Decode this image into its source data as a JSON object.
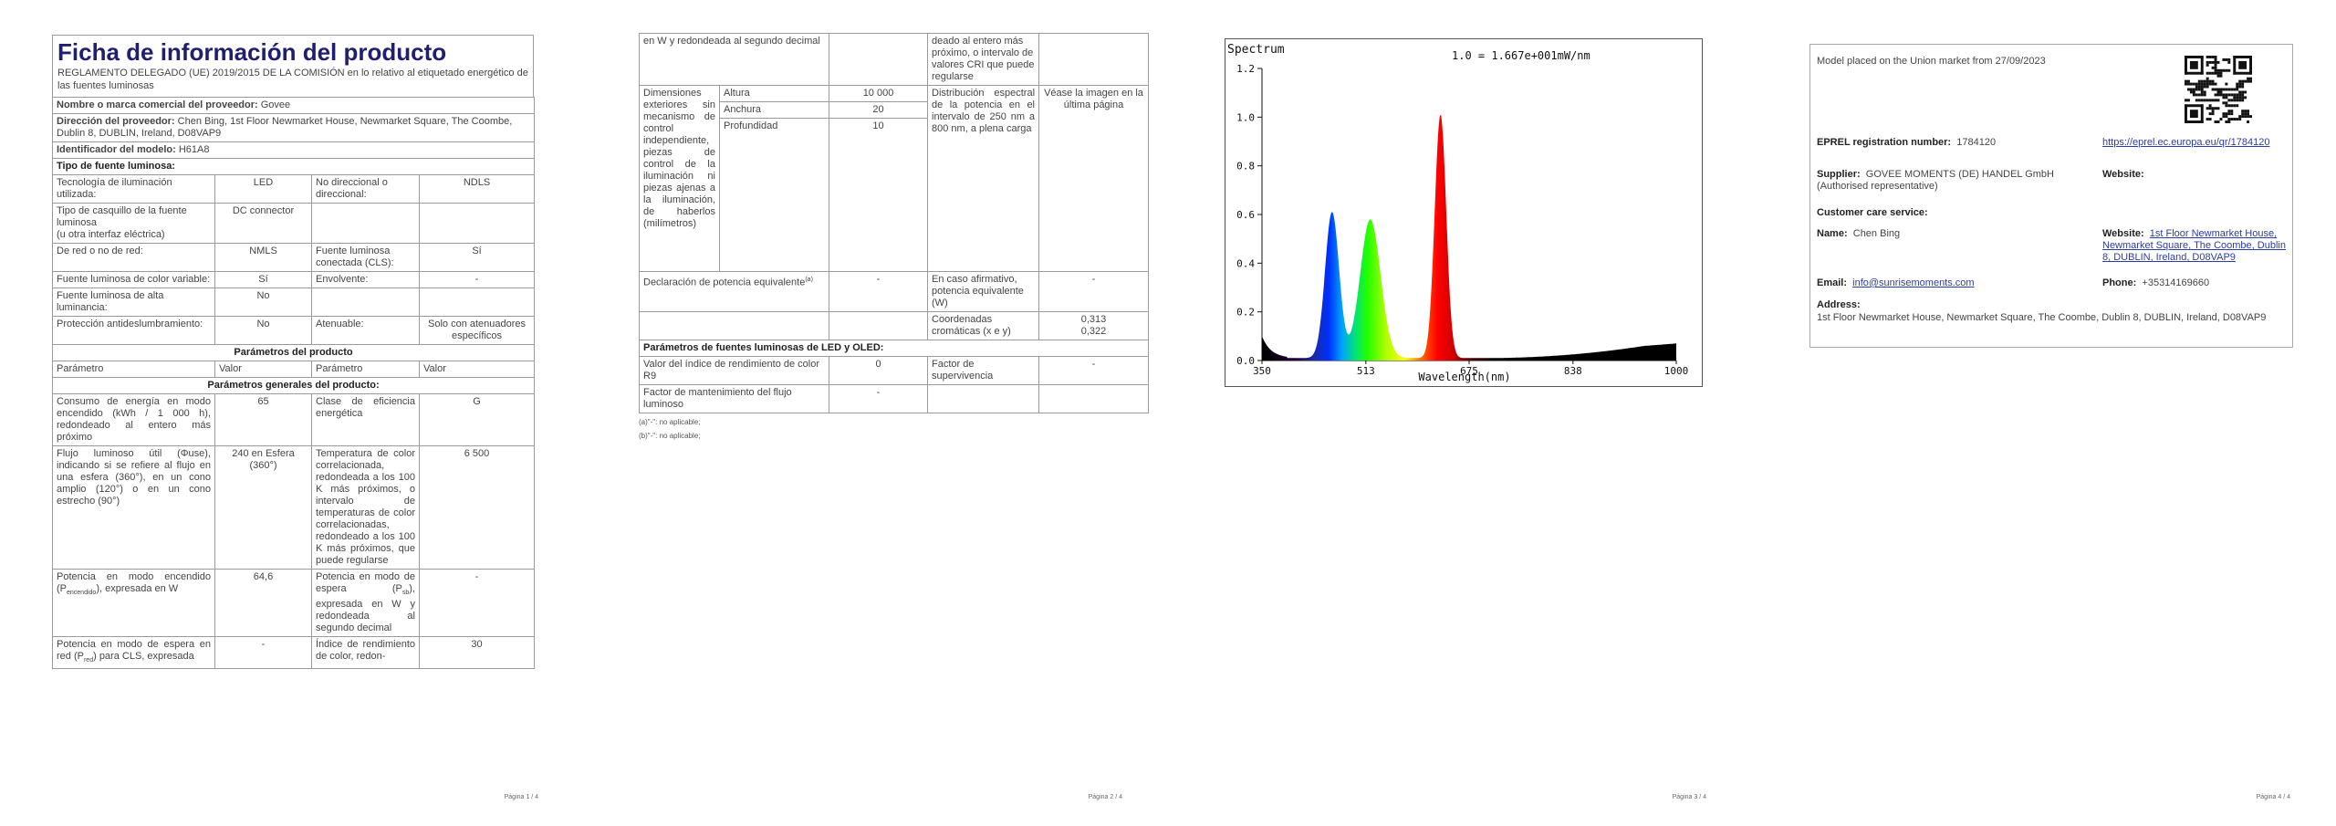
{
  "page1": {
    "title": "Ficha de información del producto",
    "subtitle": "REGLAMENTO DELEGADO (UE) 2019/2015 DE LA COMISIÓN en lo relativo al etiquetado energético de las fuentes luminosas",
    "supplier_name_label": "Nombre o marca comercial del proveedor:",
    "supplier_name": "Govee",
    "supplier_addr_label": "Dirección del proveedor:",
    "supplier_addr": "Chen Bing, 1st Floor Newmarket House, Newmarket Square, The Coombe, Dublin 8, DUBLIN, Ireland, D08VAP9",
    "model_label": "Identificador del modelo:",
    "model": "H61A8",
    "source_type": "Tipo de fuente luminosa:",
    "rows": [
      {
        "a": "Tecnología de iluminación utilizada:",
        "b": "LED",
        "c": "No direccional o direccional:",
        "d": "NDLS"
      },
      {
        "a": "Tipo de casquillo de la fuente luminosa",
        "a2": "(u otra interfaz eléctrica)",
        "b": "DC connector",
        "c": "",
        "d": ""
      },
      {
        "a": "De red o no de red:",
        "b": "NMLS",
        "c": "Fuente luminosa conectada (CLS):",
        "d": "Sí"
      },
      {
        "a": "Fuente luminosa de color variable:",
        "b": "Sí",
        "c": "Envolvente:",
        "d": "-"
      },
      {
        "a": "Fuente luminosa de alta luminancia:",
        "b": "No",
        "c": "",
        "d": ""
      },
      {
        "a": "Protección antideslumbramiento:",
        "b": "No",
        "c": "Atenuable:",
        "d": "Solo con atenuadores específicos"
      }
    ],
    "params_title": "Parámetros del producto",
    "col_param": "Parámetro",
    "col_value": "Valor",
    "general_title": "Parámetros generales del producto:",
    "params": [
      {
        "a": "Consumo de energía en modo encendido (kWh / 1 000 h), redondeado al entero más próximo",
        "b": "65",
        "c": "Clase de eficiencia energética",
        "d": "G"
      },
      {
        "a": "Flujo luminoso útil (Φuse), indicando si se refiere al flujo en una esfera (360°), en un cono amplio (120°) o en un cono estrecho (90°)",
        "b": "240 en Esfera (360°)",
        "c": "Temperatura de color correlacionada, redondeada a los 100 K más próximos, o intervalo de temperaturas de color correlacionadas, redondeado a los 100 K más próximos, que puede regularse",
        "d": "6 500"
      },
      {
        "a": "Potencia en modo encendido (P",
        "a_sub": "encendido",
        "a_end": "), expresada en W",
        "b": "64,6",
        "c": "Potencia en modo de espera (P",
        "c_sub": "sb",
        "c_end": "), expresada en W y redondeada al segundo decimal",
        "d": "-"
      },
      {
        "a": "Potencia en modo de espera en red (P",
        "a_sub": "red",
        "a_end": ") para CLS, expresada",
        "b": "-",
        "c": "Índice de rendimiento de color, redon-",
        "d": "30"
      }
    ],
    "page_num": "Página 1 / 4"
  },
  "page2": {
    "cont_a": "en W y redondeada al segundo decimal",
    "cont_c": "deado al entero más próximo, o intervalo de valores CRI que puede regularse",
    "dims_label": "Dimensiones exteriores sin mecanismo de control independiente, piezas de control de la iluminación ni piezas ajenas a la iluminación, de haberlos (milímetros)",
    "dims": [
      {
        "name": "Altura",
        "value": "10 000"
      },
      {
        "name": "Anchura",
        "value": "20"
      },
      {
        "name": "Profundidad",
        "value": "10"
      }
    ],
    "spd_label": "Distribución espectral de la potencia en el intervalo de 250 nm a 800 nm, a plena carga",
    "spd_value": "Véase la imagen en la última página",
    "equiv_label": "Declaración de potencia equivalente",
    "equiv_sup": "(a)",
    "equiv_value": "-",
    "equiv_c": "En caso afirmativo, potencia equivalente (W)",
    "equiv_d": "-",
    "chroma_label": "Coordenadas cromáticas (x e y)",
    "chroma_x": "0,313",
    "chroma_y": "0,322",
    "led_title": "Parámetros de fuentes luminosas de LED y OLED:",
    "r9_label": "Valor del índice de rendimiento de color R9",
    "r9_value": "0",
    "surv_label": "Factor de supervivencia",
    "surv_value": "-",
    "maint_label": "Factor de mantenimiento del flujo luminoso",
    "maint_value": "-",
    "foot_a": "(a)\"-\": no aplicable;",
    "foot_b": "(b)\"-\": no aplicable;",
    "page_num": "Página 2 / 4"
  },
  "page3": {
    "page_num": "Página 3 / 4",
    "chart_data": {
      "type": "area",
      "title": "Spectrum",
      "scale_note": "1.0 = 1.667e+001mW/nm",
      "xlabel": "Wavelength(nm)",
      "ylabel": "",
      "xlim": [
        350,
        1000
      ],
      "ylim": [
        0,
        1.2
      ],
      "x_ticks": [
        350,
        513,
        675,
        838,
        1000
      ],
      "y_ticks": [
        "0.0",
        "0.2",
        "0.4",
        "0.6",
        "0.8",
        "1.0",
        "1.2"
      ],
      "peaks": [
        {
          "center": 460,
          "height": 0.6,
          "color": "blue"
        },
        {
          "center": 520,
          "height": 0.57,
          "color": "green"
        },
        {
          "center": 630,
          "height": 1.0,
          "color": "red"
        }
      ]
    }
  },
  "page4": {
    "placed": "Model placed on the Union market from 27/09/2023",
    "eprel_label": "EPREL registration number:",
    "eprel_value": "1784120",
    "eprel_link": "https://eprel.ec.europa.eu/qr/1784120",
    "supplier_label": "Supplier:",
    "supplier_value": "GOVEE MOMENTS (DE) HANDEL GmbH (Authorised representative)",
    "website_label": "Website:",
    "care_label": "Customer care service:",
    "name_label": "Name:",
    "name_value": "Chen Bing",
    "website2_label": "Website:",
    "website2_value": "1st Floor Newmarket House, Newmarket Square, The Coombe, Dublin 8, DUBLIN, Ireland, D08VAP9",
    "email_label": "Email:",
    "email_value": "info@sunrisemoments.com",
    "phone_label": "Phone:",
    "phone_value": "+35314169660",
    "address_label": "Address:",
    "address_value": "1st Floor Newmarket House, Newmarket Square, The Coombe, Dublin 8, DUBLIN, Ireland, D08VAP9",
    "page_num": "Página 4 / 4"
  }
}
